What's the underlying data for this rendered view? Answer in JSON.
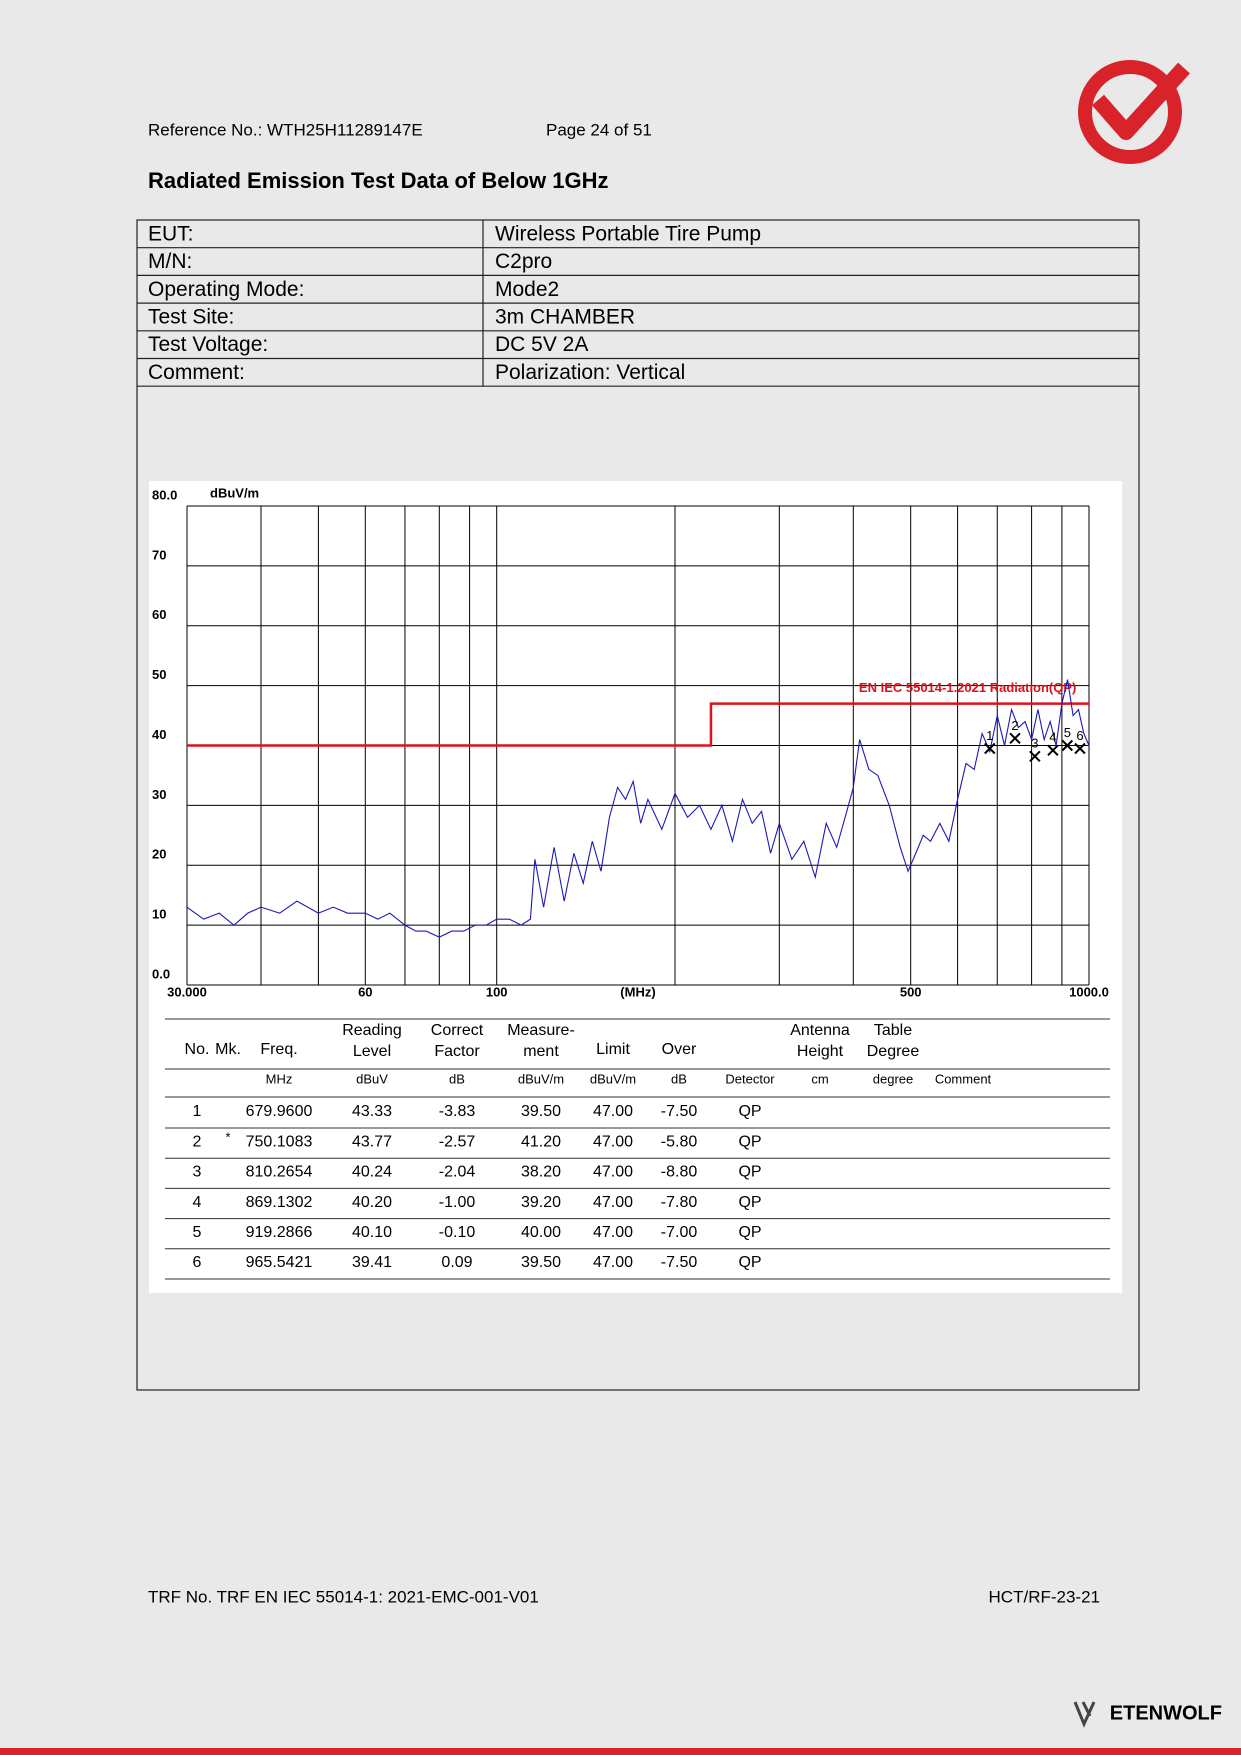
{
  "header": {
    "reference": "Reference No.: WTH25H11289147E",
    "page": "Page 24 of 51"
  },
  "title": "Radiated Emission Test Data of Below 1GHz",
  "info_table": {
    "rows": [
      [
        "EUT:",
        "Wireless Portable Tire Pump"
      ],
      [
        "M/N:",
        "C2pro"
      ],
      [
        "Operating Mode:",
        "Mode2"
      ],
      [
        "Test Site:",
        "3m CHAMBER"
      ],
      [
        "Test Voltage:",
        "DC 5V 2A"
      ],
      [
        "Comment:",
        "Polarization: Vertical"
      ]
    ]
  },
  "chart_data": {
    "type": "line",
    "xscale": "log",
    "y_unit": "dBuV/m",
    "x_label": "(MHz)",
    "xlim": [
      30,
      1000
    ],
    "xticks": [
      {
        "value": 30,
        "label": "30.000"
      },
      60,
      100,
      500,
      {
        "value": 1000,
        "label": "1000.0"
      }
    ],
    "xgrid": [
      30,
      40,
      50,
      60,
      70,
      80,
      90,
      100,
      200,
      300,
      400,
      500,
      600,
      700,
      800,
      900,
      1000
    ],
    "ylim": [
      0,
      80
    ],
    "yticks": [
      {
        "value": 0,
        "label": "0.0"
      },
      10,
      20,
      30,
      40,
      50,
      60,
      70,
      {
        "value": 80,
        "label": "80.0"
      }
    ],
    "grid": true,
    "series": [
      {
        "name": "EN IEC 55014-1.2021 Radiation(QP)",
        "color": "#e0101a",
        "x": [
          30,
          230,
          230,
          1000
        ],
        "values": [
          40,
          40,
          47,
          47
        ]
      },
      {
        "color": "#1a1ab8",
        "x": [
          30,
          32,
          34,
          36,
          38,
          40,
          43,
          46,
          50,
          53,
          56,
          60,
          63,
          66,
          70,
          73,
          76,
          80,
          84,
          88,
          92,
          96,
          100,
          105,
          110,
          114,
          116,
          120,
          125,
          130,
          135,
          140,
          145,
          150,
          155,
          160,
          165,
          170,
          175,
          180,
          190,
          200,
          210,
          220,
          230,
          240,
          250,
          260,
          270,
          280,
          290,
          300,
          315,
          330,
          345,
          360,
          375,
          390,
          400,
          410,
          425,
          440,
          460,
          480,
          495,
          510,
          525,
          540,
          560,
          580,
          600,
          620,
          640,
          660,
          680,
          700,
          720,
          740,
          760,
          780,
          800,
          820,
          840,
          860,
          880,
          900,
          920,
          940,
          960,
          980,
          1000
        ],
        "values": [
          13,
          11,
          12,
          10,
          12,
          13,
          12,
          14,
          12,
          13,
          12,
          12,
          11,
          12,
          10,
          9,
          9,
          8,
          9,
          9,
          10,
          10,
          11,
          11,
          10,
          11,
          21,
          13,
          23,
          14,
          22,
          17,
          24,
          19,
          28,
          33,
          31,
          34,
          27,
          31,
          26,
          32,
          28,
          30,
          26,
          30,
          24,
          31,
          27,
          29,
          22,
          27,
          21,
          24,
          18,
          27,
          23,
          29,
          33,
          41,
          36,
          35,
          30,
          23,
          19,
          22,
          25,
          24,
          27,
          24,
          31,
          37,
          36,
          42,
          39,
          45,
          40,
          46,
          43,
          44,
          41,
          46,
          41,
          44,
          40,
          47,
          51,
          45,
          46,
          42,
          40
        ]
      }
    ],
    "markers": {
      "labels": [
        "1",
        "2",
        "3",
        "4",
        "5",
        "6"
      ],
      "x": [
        679.96,
        750.1083,
        810.2654,
        869.1302,
        919.2866,
        965.5421
      ],
      "values": [
        39.5,
        41.2,
        38.2,
        39.2,
        40.0,
        39.5
      ]
    }
  },
  "measurement_table": {
    "headers": [
      [
        "No."
      ],
      [
        "Mk."
      ],
      [
        "Freq."
      ],
      [
        "Reading",
        "Level"
      ],
      [
        "Correct",
        "Factor"
      ],
      [
        "Measure-",
        "ment"
      ],
      [
        "Limit"
      ],
      [
        "Over"
      ],
      null,
      [
        "Antenna",
        "Height"
      ],
      [
        "Table",
        "Degree"
      ],
      null
    ],
    "units": [
      null,
      null,
      "MHz",
      "dBuV",
      "dB",
      "dBuV/m",
      "dBuV/m",
      "dB",
      "Detector",
      "cm",
      "degree",
      "Comment"
    ],
    "rows": [
      [
        "1",
        null,
        "679.9600",
        "43.33",
        "-3.83",
        "39.50",
        "47.00",
        "-7.50",
        "QP"
      ],
      [
        "2",
        "*",
        "750.1083",
        "43.77",
        "-2.57",
        "41.20",
        "47.00",
        "-5.80",
        "QP"
      ],
      [
        "3",
        null,
        "810.2654",
        "40.24",
        "-2.04",
        "38.20",
        "47.00",
        "-8.80",
        "QP"
      ],
      [
        "4",
        null,
        "869.1302",
        "40.20",
        "-1.00",
        "39.20",
        "47.00",
        "-7.80",
        "QP"
      ],
      [
        "5",
        null,
        "919.2866",
        "40.10",
        "-0.10",
        "40.00",
        "47.00",
        "-7.00",
        "QP"
      ],
      [
        "6",
        null,
        "965.5421",
        "39.41",
        "0.09",
        "39.50",
        "47.00",
        "-7.50",
        "QP"
      ]
    ]
  },
  "footer": {
    "trf": "TRF No. TRF EN IEC 55014-1: 2021-EMC-001-V01",
    "code": "HCT/RF-23-21",
    "brand": "ETENWOLF"
  }
}
